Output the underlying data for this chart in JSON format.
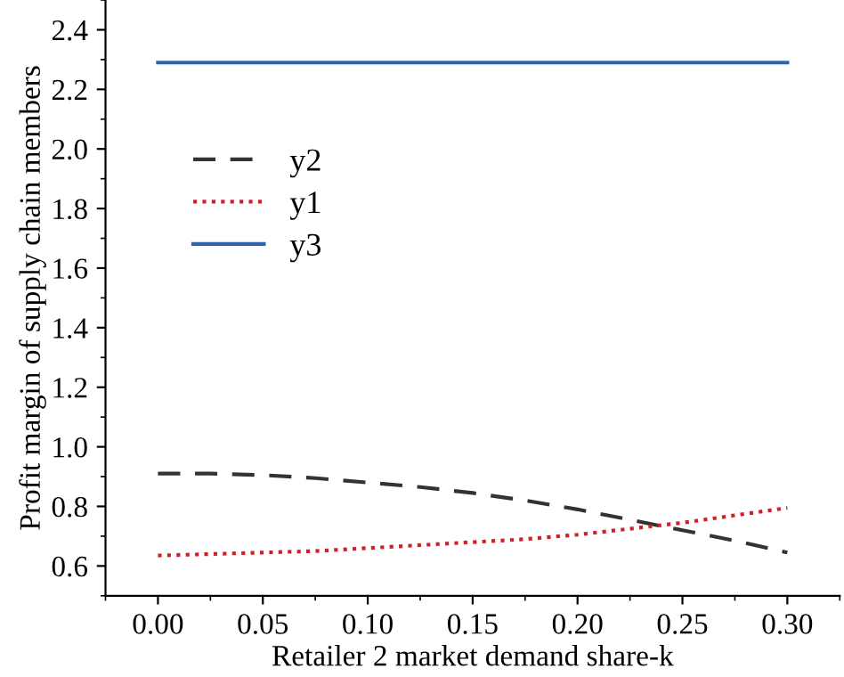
{
  "chart_data": {
    "type": "line",
    "xlabel": "Retailer 2 market demand share-k",
    "ylabel": "Profit margin of supply chain members",
    "x": [
      0,
      0.025,
      0.05,
      0.075,
      0.1,
      0.125,
      0.15,
      0.175,
      0.2,
      0.225,
      0.25,
      0.275,
      0.3
    ],
    "series": [
      {
        "name": "y2",
        "color": "#333333",
        "line_style": "dashed",
        "values": [
          0.91,
          0.91,
          0.905,
          0.895,
          0.88,
          0.865,
          0.845,
          0.82,
          0.79,
          0.755,
          0.72,
          0.685,
          0.645
        ]
      },
      {
        "name": "y1",
        "color": "#d0202a",
        "line_style": "dotted",
        "values": [
          0.635,
          0.64,
          0.645,
          0.65,
          0.66,
          0.67,
          0.68,
          0.69,
          0.705,
          0.725,
          0.745,
          0.77,
          0.795
        ]
      },
      {
        "name": "y3",
        "color": "#2e64ad",
        "line_style": "solid",
        "values": [
          2.29,
          2.29,
          2.29,
          2.29,
          2.29,
          2.29,
          2.29,
          2.29,
          2.29,
          2.29,
          2.29,
          2.29,
          2.29
        ]
      }
    ],
    "xlim": [
      -0.025,
      0.325
    ],
    "ylim": [
      0.5,
      2.5
    ],
    "xticks": [
      {
        "value": 0,
        "label": "0.00"
      },
      {
        "value": 0.05,
        "label": "0.05"
      },
      {
        "value": 0.1,
        "label": "0.10"
      },
      {
        "value": 0.15,
        "label": "0.15"
      },
      {
        "value": 0.2,
        "label": "0.20"
      },
      {
        "value": 0.25,
        "label": "0.25"
      },
      {
        "value": 0.3,
        "label": "0.30"
      }
    ],
    "yticks": [
      0.6,
      0.8,
      {
        "value": 1.0,
        "label": "1.0"
      },
      1.2,
      1.4,
      1.6,
      1.8,
      {
        "value": 2.0,
        "label": "2.0"
      },
      2.2,
      2.4
    ],
    "legend": "top left",
    "grid": false
  }
}
